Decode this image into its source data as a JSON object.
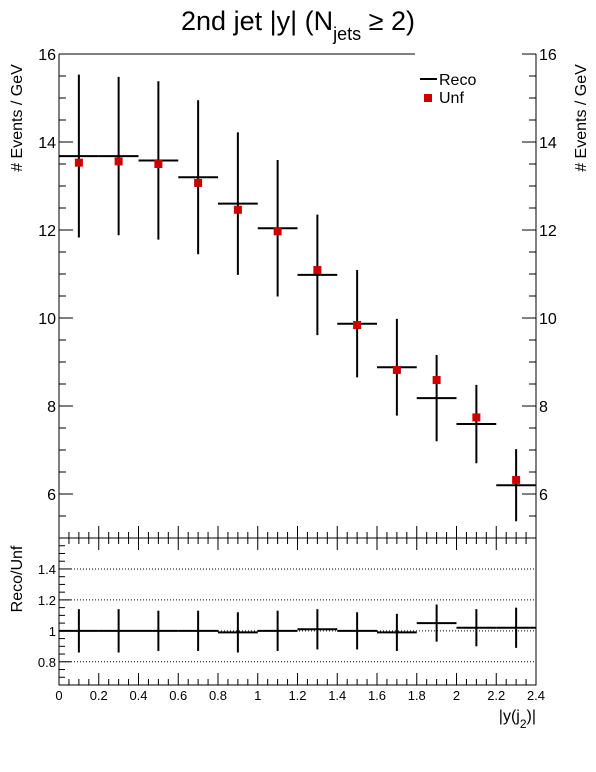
{
  "chart_data": [
    {
      "type": "scatter",
      "title": "2nd jet |y| (N",
      "title_sub": "jets",
      "title_tail": " ≥ 2)",
      "ylabel": "# Events / GeV",
      "ylim": [
        5.0,
        16.0
      ],
      "yticks": [
        6,
        8,
        10,
        12,
        14,
        16
      ],
      "legend": {
        "placement": "top-right",
        "entries": [
          "Reco",
          "Unf"
        ]
      },
      "colors": {
        "reco": "#000000",
        "unf": "#cc0000"
      },
      "bins": [
        {
          "lo": 0.0,
          "hi": 0.2
        },
        {
          "lo": 0.2,
          "hi": 0.4
        },
        {
          "lo": 0.4,
          "hi": 0.6
        },
        {
          "lo": 0.6,
          "hi": 0.8
        },
        {
          "lo": 0.8,
          "hi": 1.0
        },
        {
          "lo": 1.0,
          "hi": 1.2
        },
        {
          "lo": 1.2,
          "hi": 1.4
        },
        {
          "lo": 1.4,
          "hi": 1.6
        },
        {
          "lo": 1.6,
          "hi": 1.8
        },
        {
          "lo": 1.8,
          "hi": 2.0
        },
        {
          "lo": 2.0,
          "hi": 2.2
        },
        {
          "lo": 2.2,
          "hi": 2.4
        }
      ],
      "series": [
        {
          "name": "Reco",
          "style": "histogram-errorbars",
          "values": [
            13.68,
            13.68,
            13.58,
            13.2,
            12.6,
            12.04,
            10.98,
            9.87,
            8.88,
            8.18,
            7.59,
            6.2
          ],
          "errors": [
            1.85,
            1.8,
            1.8,
            1.75,
            1.62,
            1.55,
            1.37,
            1.22,
            1.1,
            0.98,
            0.89,
            0.82
          ]
        },
        {
          "name": "Unf",
          "style": "markers",
          "values": [
            13.53,
            13.56,
            13.5,
            13.07,
            12.46,
            11.97,
            11.09,
            9.84,
            8.82,
            8.59,
            7.74,
            6.32
          ]
        }
      ]
    },
    {
      "type": "scatter",
      "xlabel": "|y(j",
      "xlabel_sub": "2",
      "xlabel_tail": ")|",
      "ylabel": "Reco/Unf",
      "ylim": [
        0.65,
        1.6
      ],
      "yticks": [
        0.8,
        1.0,
        1.2,
        1.4
      ],
      "ytick_labels": [
        "0.8",
        "1",
        "1.2",
        "1.4"
      ],
      "grid": "dotted-horizontal",
      "xlim": [
        0.0,
        2.4
      ],
      "xticks": [
        0,
        0.2,
        0.4,
        0.6,
        0.8,
        1,
        1.2,
        1.4,
        1.6,
        1.8,
        2,
        2.2,
        2.4
      ],
      "xtick_labels": [
        "0",
        "0.2",
        "0.4",
        "0.6",
        "0.8",
        "1",
        "1.2",
        "1.4",
        "1.6",
        "1.8",
        "2",
        "2.2",
        "2.4"
      ],
      "series": [
        {
          "name": "Reco/Unf",
          "style": "histogram-errorbars",
          "values": [
            1.0,
            1.0,
            1.0,
            1.0,
            0.99,
            1.0,
            1.01,
            1.0,
            0.99,
            1.05,
            1.02,
            1.02
          ],
          "errors": [
            0.14,
            0.14,
            0.13,
            0.13,
            0.13,
            0.13,
            0.13,
            0.12,
            0.12,
            0.12,
            0.12,
            0.13
          ]
        }
      ]
    }
  ]
}
